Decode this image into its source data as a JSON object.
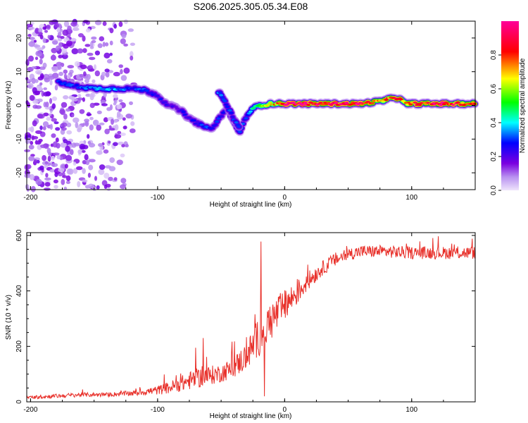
{
  "title": "S206.2025.305.05.34.E08",
  "chart_data": [
    {
      "type": "heatmap",
      "title": "S206.2025.305.05.34.E08",
      "xlabel": "Height of straight line (km)",
      "ylabel": "Frequency (Hz)",
      "xlim": [
        -203,
        150
      ],
      "ylim": [
        -25,
        25
      ],
      "xticks": [
        -200,
        -100,
        0,
        100
      ],
      "yticks": [
        20,
        10,
        0,
        -10,
        -20
      ],
      "colorbar": {
        "label": "Normalized spectral amplitude",
        "range": [
          0,
          1
        ],
        "ticks": [
          0.0,
          0.2,
          0.4,
          0.6,
          0.8
        ],
        "colors": [
          "#e8d8fb",
          "#7a00e0",
          "#0000ff",
          "#00ffff",
          "#00ff00",
          "#ffff00",
          "#ff0000",
          "#ff00aa"
        ]
      },
      "ridge": {
        "x": [
          -178,
          -170,
          -160,
          -150,
          -140,
          -130,
          -120,
          -110,
          -100,
          -95,
          -90,
          -85,
          -80,
          -75,
          -70,
          -65,
          -60,
          -55,
          -50,
          -45,
          -40,
          -35,
          -30,
          -25,
          -20,
          -10,
          0,
          10,
          20,
          30,
          40,
          50,
          60,
          70,
          80,
          85,
          90,
          95,
          100,
          110,
          120,
          130,
          140,
          150
        ],
        "y": [
          7,
          6,
          5.5,
          5,
          5,
          5,
          5,
          4.5,
          3,
          1,
          0,
          -1,
          -2,
          -4,
          -5,
          -6,
          -7,
          -6,
          -3,
          -1,
          -5,
          -8,
          -3,
          -1,
          0,
          0.5,
          0.5,
          0.5,
          0.5,
          0.5,
          0.5,
          0.5,
          0.5,
          1,
          1.5,
          2.5,
          2,
          0.5,
          0.5,
          0.5,
          0.5,
          0.5,
          0.5,
          0.5
        ],
        "amplitude": [
          0.35,
          0.3,
          0.3,
          0.35,
          0.35,
          0.35,
          0.3,
          0.3,
          0.25,
          0.25,
          0.2,
          0.2,
          0.25,
          0.25,
          0.25,
          0.3,
          0.3,
          0.3,
          0.25,
          0.25,
          0.3,
          0.3,
          0.3,
          0.4,
          0.55,
          0.7,
          0.9,
          0.95,
          0.95,
          0.95,
          0.95,
          0.95,
          0.9,
          0.8,
          0.75,
          0.85,
          0.8,
          0.75,
          0.85,
          0.9,
          0.9,
          0.9,
          0.85,
          0.8
        ]
      },
      "branch": {
        "x": [
          -52,
          -48,
          -44,
          -40,
          -36
        ],
        "y": [
          4,
          2,
          -1,
          -4,
          -6
        ],
        "amplitude": [
          0.35,
          0.35,
          0.3,
          0.3,
          0.3
        ]
      },
      "scatter_region": {
        "x_range": [
          -203,
          -115
        ],
        "y_range": [
          -25,
          25
        ],
        "amplitude": 0.08
      }
    },
    {
      "type": "line",
      "xlabel": "Height of straight line (km)",
      "ylabel": "SNR (10 * v/v)",
      "xlim": [
        -203,
        150
      ],
      "ylim": [
        0,
        610
      ],
      "xticks": [
        -200,
        -100,
        0,
        100
      ],
      "yticks": [
        0,
        200,
        400,
        600
      ],
      "series": [
        {
          "name": "SNR",
          "color": "#e8302a",
          "envelope": {
            "x": [
              -203,
              -180,
              -160,
              -140,
              -120,
              -100,
              -90,
              -80,
              -70,
              -60,
              -50,
              -40,
              -30,
              -20,
              -10,
              0,
              10,
              20,
              30,
              40,
              50,
              60,
              80,
              100,
              120,
              150
            ],
            "mean": [
              15,
              20,
              25,
              25,
              30,
              40,
              50,
              65,
              80,
              90,
              100,
              120,
              160,
              230,
              290,
              340,
              390,
              440,
              480,
              510,
              530,
              540,
              540,
              535,
              535,
              535
            ],
            "noise": [
              10,
              12,
              12,
              12,
              15,
              25,
              35,
              45,
              55,
              55,
              50,
              60,
              80,
              110,
              110,
              90,
              70,
              50,
              40,
              40,
              35,
              35,
              35,
              35,
              35,
              35
            ]
          },
          "spikes": [
            {
              "x": -18.5,
              "y": 578
            },
            {
              "x": -16,
              "y": 20
            },
            {
              "x": -64,
              "y": 230
            },
            {
              "x": -70,
              "y": 195
            }
          ]
        }
      ]
    }
  ]
}
